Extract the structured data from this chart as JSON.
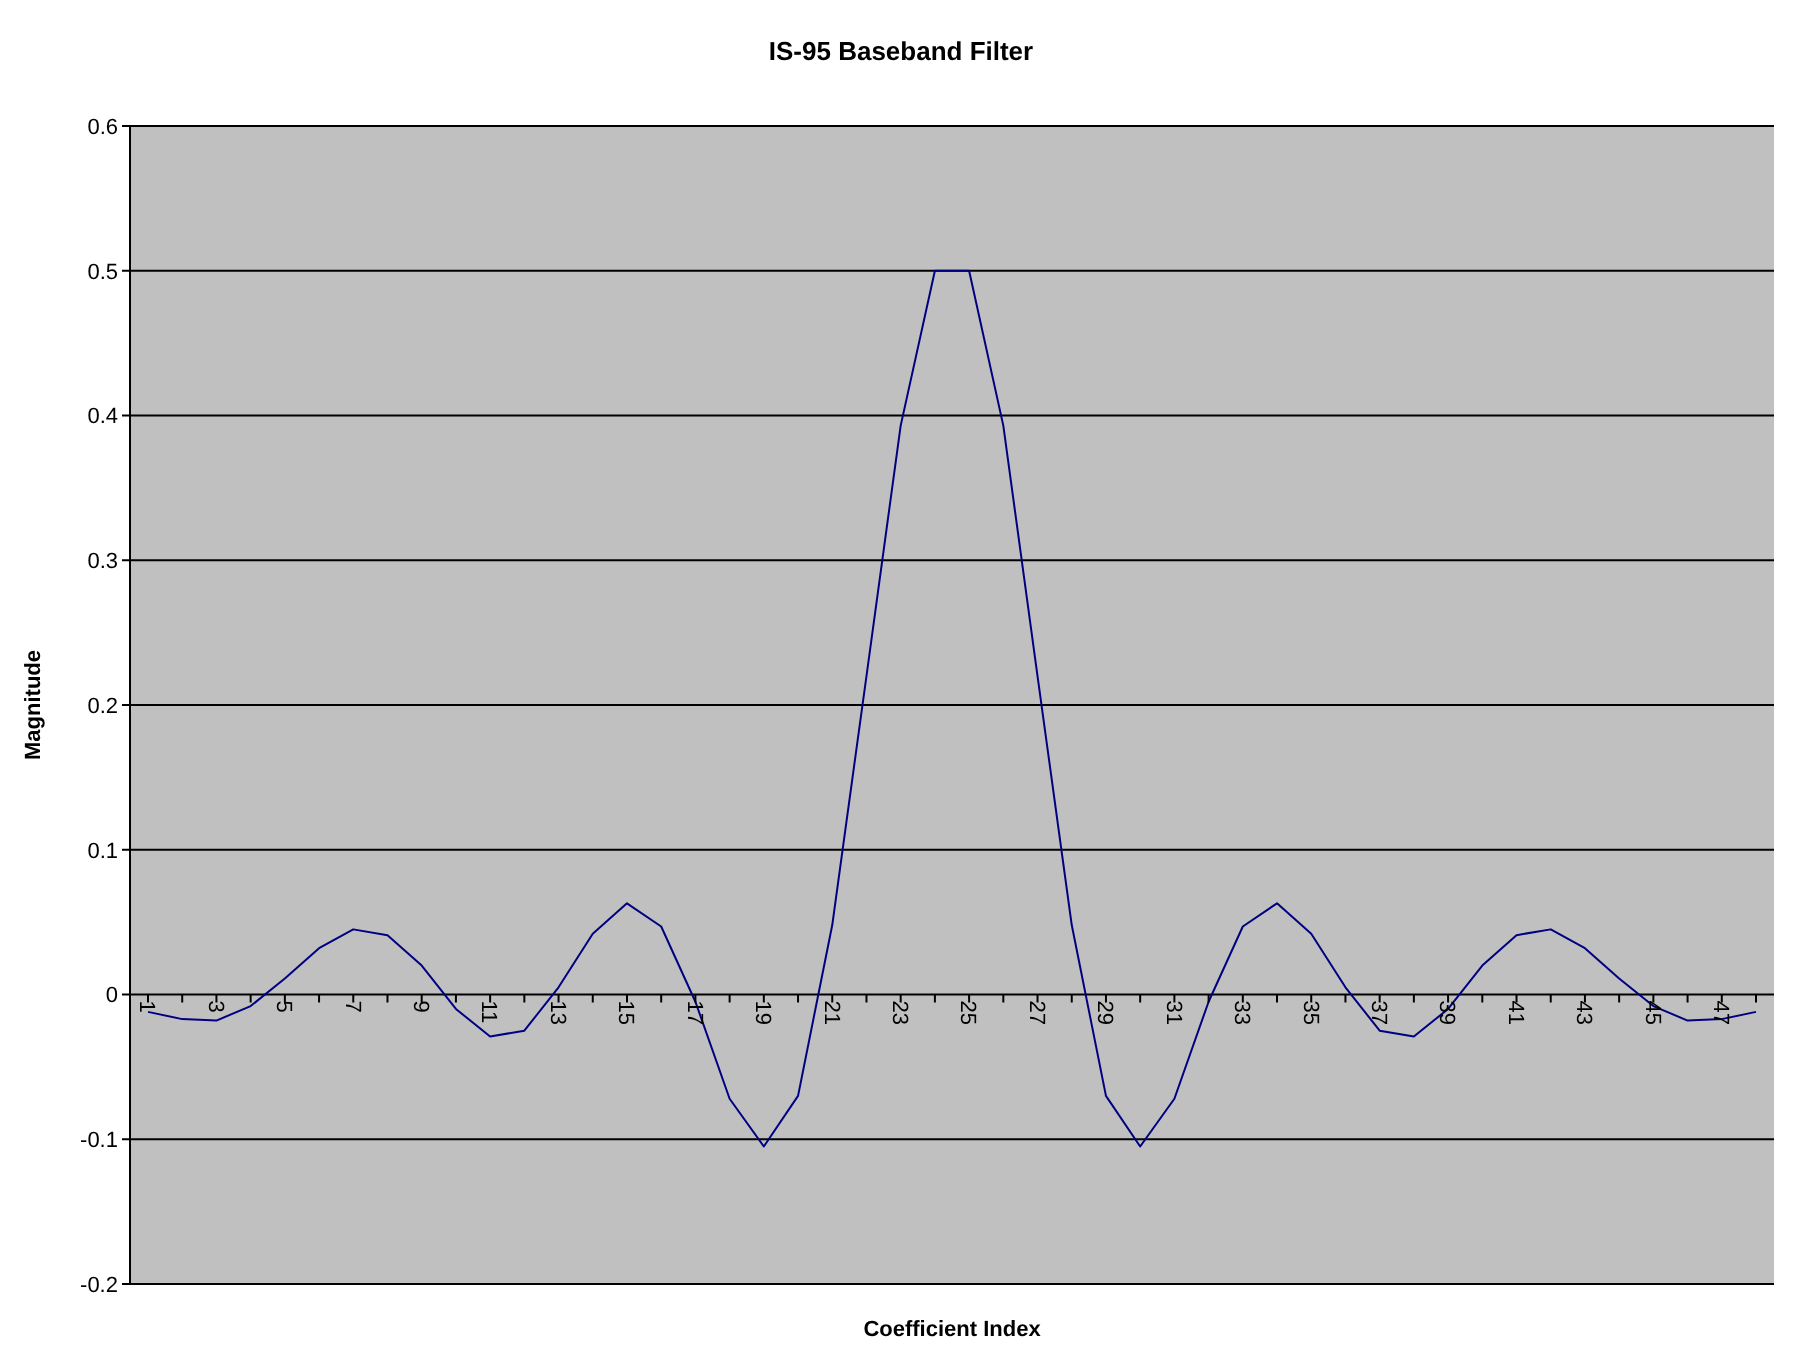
{
  "chart_data": {
    "type": "line",
    "title": "IS-95 Baseband Filter",
    "xlabel": "Coefficient Index",
    "ylabel": "Magnitude",
    "categories": [
      "1",
      null,
      "3",
      null,
      "5",
      null,
      "7",
      null,
      "9",
      null,
      "11",
      null,
      "13",
      null,
      "15",
      null,
      "17",
      null,
      "19",
      null,
      "21",
      null,
      "23",
      null,
      "25",
      null,
      "27",
      null,
      "29",
      null,
      "31",
      null,
      "33",
      null,
      "35",
      null,
      "37",
      null,
      "39",
      null,
      "41",
      null,
      "43",
      null,
      "45",
      null,
      "47",
      null
    ],
    "series": [
      {
        "color": "#000080",
        "values": [
          -0.012,
          -0.017,
          -0.018,
          -0.008,
          0.011,
          0.032,
          0.045,
          0.041,
          0.02,
          -0.01,
          -0.029,
          -0.025,
          0.005,
          0.042,
          0.063,
          0.047,
          -0.005,
          -0.072,
          -0.105,
          -0.07,
          0.048,
          0.22,
          0.393,
          0.5,
          0.5,
          0.393,
          0.22,
          0.048,
          -0.07,
          -0.105,
          -0.072,
          -0.005,
          0.047,
          0.063,
          0.042,
          0.005,
          -0.025,
          -0.029,
          -0.01,
          0.02,
          0.041,
          0.045,
          0.032,
          0.011,
          -0.008,
          -0.018,
          -0.017,
          -0.012
        ]
      }
    ],
    "ylim": [
      -0.2,
      0.6
    ],
    "yticks": [
      -0.2,
      -0.1,
      0,
      0.1,
      0.2,
      0.3,
      0.4,
      0.5,
      0.6
    ],
    "grid": "y",
    "marker": "none",
    "line_style": "solid"
  }
}
